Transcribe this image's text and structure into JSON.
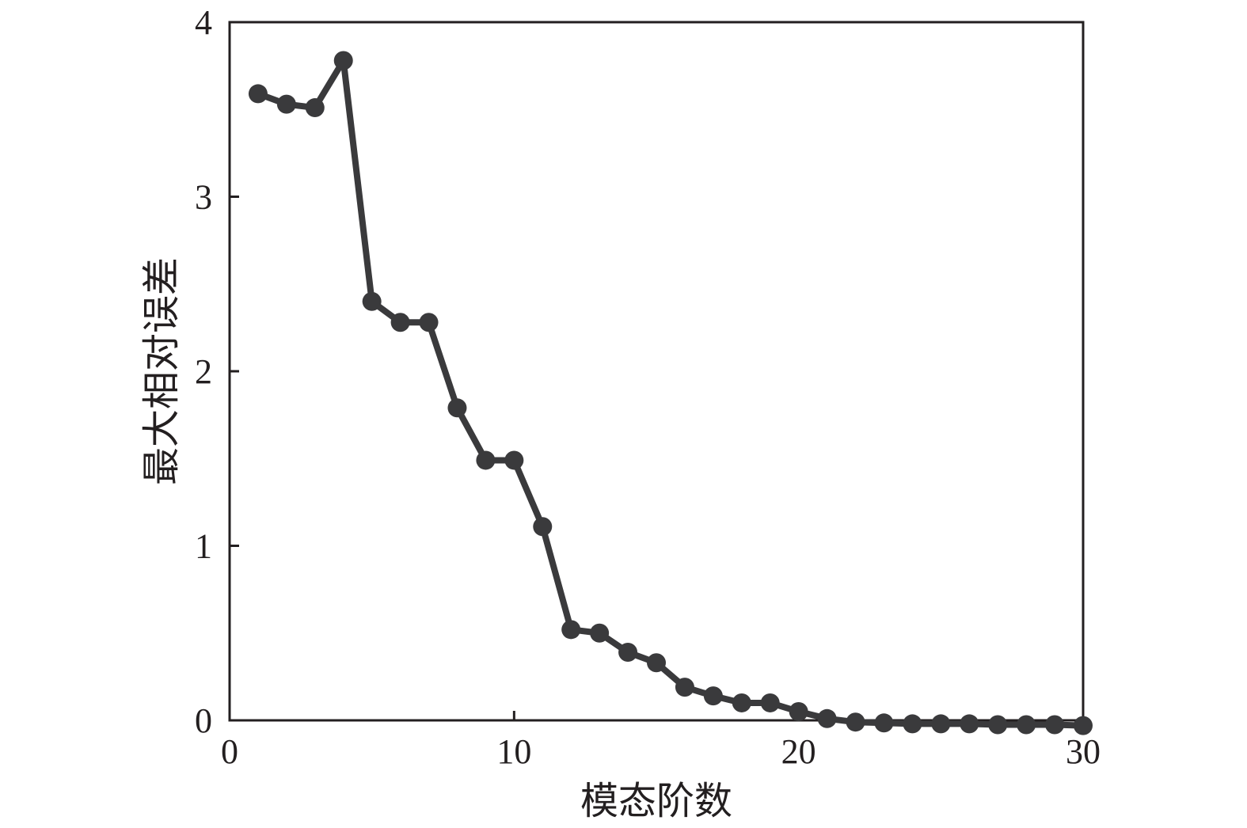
{
  "chart_data": {
    "type": "line",
    "title": "",
    "xlabel": "模态阶数",
    "ylabel": "最大相对误差",
    "xlim": [
      0,
      30
    ],
    "ylim": [
      0,
      4
    ],
    "xticks": [
      "0",
      "10",
      "20",
      "30"
    ],
    "yticks": [
      "0",
      "1",
      "2",
      "3",
      "4"
    ],
    "grid": false,
    "legend": "none",
    "color": "#3a3a3c",
    "series": [
      {
        "x": [
          1,
          2,
          3,
          4,
          5,
          6,
          7,
          8,
          9,
          10,
          11,
          12,
          13,
          14,
          15,
          16,
          17,
          18,
          19,
          20,
          21,
          22,
          23,
          24,
          25,
          26,
          27,
          28,
          29,
          30
        ],
        "y": [
          3.59,
          3.53,
          3.51,
          3.78,
          2.4,
          2.28,
          2.28,
          1.79,
          1.49,
          1.49,
          1.11,
          0.52,
          0.5,
          0.39,
          0.33,
          0.19,
          0.14,
          0.1,
          0.1,
          0.05,
          0.01,
          -0.01,
          -0.015,
          -0.02,
          -0.02,
          -0.02,
          -0.025,
          -0.025,
          -0.025,
          -0.03
        ]
      }
    ]
  }
}
